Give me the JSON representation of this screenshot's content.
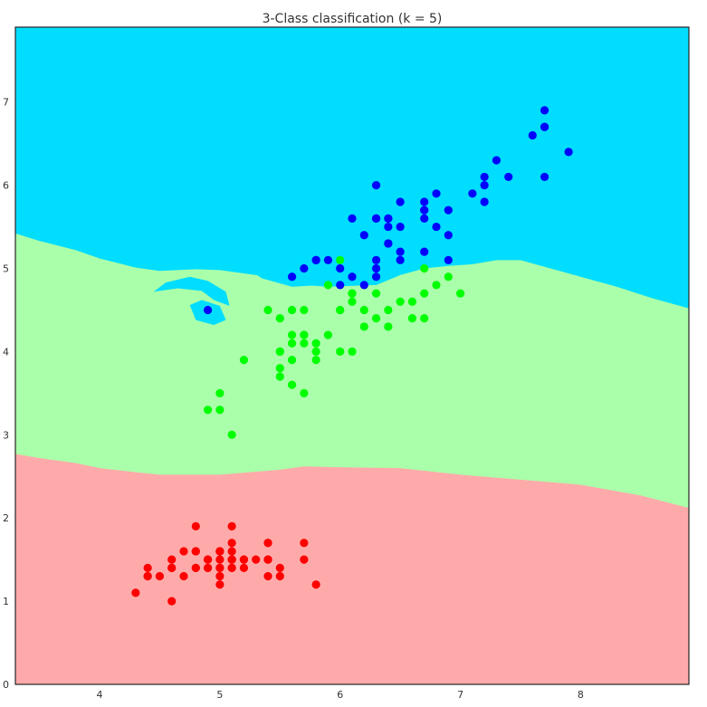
{
  "chart_data": {
    "type": "scatter",
    "title": "3-Class classification (k = 5)",
    "xlabel": "",
    "ylabel": "",
    "xlim": [
      3.3,
      8.9
    ],
    "ylim": [
      0,
      7.9
    ],
    "xticks": [
      4,
      5,
      6,
      7,
      8
    ],
    "yticks": [
      0,
      1,
      2,
      3,
      4,
      5,
      6,
      7
    ],
    "grid": false,
    "legend": "none",
    "region_colors": {
      "class0": "#FFAAAA",
      "class1": "#AAFFAA",
      "class2": "#00DDFF"
    },
    "boundaries": {
      "lower": {
        "x": [
          3.3,
          3.5,
          3.8,
          4.0,
          4.3,
          4.5,
          5.0,
          5.5,
          5.7,
          6.0,
          6.5,
          7.0,
          7.5,
          8.0,
          8.5,
          8.9
        ],
        "y": [
          2.77,
          2.72,
          2.66,
          2.6,
          2.55,
          2.52,
          2.52,
          2.58,
          2.62,
          2.61,
          2.6,
          2.52,
          2.46,
          2.4,
          2.27,
          2.12
        ]
      },
      "upper": {
        "x": [
          3.3,
          3.5,
          3.8,
          4.0,
          4.3,
          4.5,
          4.8,
          5.0,
          5.3,
          5.5,
          5.7,
          5.9,
          6.1,
          6.3,
          6.5,
          6.7,
          6.9,
          7.1,
          7.3,
          7.5,
          7.8,
          8.0,
          8.3,
          8.6,
          8.9
        ],
        "y": [
          5.42,
          5.33,
          5.22,
          5.12,
          5.01,
          4.97,
          4.99,
          4.98,
          4.92,
          4.9,
          4.8,
          4.78,
          4.79,
          4.8,
          4.92,
          5.0,
          5.03,
          5.05,
          5.1,
          5.1,
          4.98,
          4.9,
          4.78,
          4.64,
          4.52
        ]
      },
      "blue_islands": [
        {
          "x": [
            4.45,
            4.55,
            4.75,
            4.9,
            5.05,
            5.08,
            4.95,
            4.85,
            4.65,
            4.45
          ],
          "y": [
            4.72,
            4.83,
            4.9,
            4.85,
            4.72,
            4.55,
            4.62,
            4.73,
            4.76,
            4.72
          ]
        },
        {
          "x": [
            4.75,
            4.85,
            5.0,
            5.05,
            4.95,
            4.8,
            4.75
          ],
          "y": [
            4.56,
            4.62,
            4.55,
            4.38,
            4.32,
            4.38,
            4.56
          ]
        },
        {
          "x": [
            5.28,
            5.6,
            5.85,
            5.85,
            5.6,
            5.35,
            5.28
          ],
          "y": [
            4.95,
            5.08,
            5.12,
            4.8,
            4.78,
            4.88,
            4.95
          ]
        }
      ]
    },
    "series": [
      {
        "color": "#FF0000",
        "x": [
          5.1,
          4.9,
          4.7,
          4.6,
          5.0,
          5.4,
          4.6,
          5.0,
          4.4,
          4.9,
          5.4,
          4.8,
          4.8,
          4.3,
          5.8,
          5.7,
          5.4,
          5.1,
          5.7,
          5.1,
          5.4,
          5.1,
          4.6,
          5.1,
          4.8,
          5.0,
          5.0,
          5.2,
          5.2,
          4.7,
          4.8,
          5.4,
          5.2,
          5.5,
          4.9,
          5.0,
          5.5,
          4.9,
          4.4,
          5.1,
          5.0,
          4.5,
          4.4,
          5.0,
          5.1,
          4.8,
          5.1,
          4.6,
          5.3,
          5.0
        ],
        "y": [
          1.4,
          1.4,
          1.3,
          1.5,
          1.4,
          1.7,
          1.4,
          1.5,
          1.4,
          1.5,
          1.5,
          1.6,
          1.4,
          1.1,
          1.2,
          1.5,
          1.3,
          1.4,
          1.7,
          1.5,
          1.7,
          1.5,
          1.0,
          1.7,
          1.9,
          1.6,
          1.6,
          1.5,
          1.4,
          1.6,
          1.6,
          1.5,
          1.5,
          1.4,
          1.5,
          1.2,
          1.3,
          1.4,
          1.3,
          1.5,
          1.3,
          1.3,
          1.3,
          1.6,
          1.9,
          1.4,
          1.6,
          1.4,
          1.5,
          1.4
        ]
      },
      {
        "color": "#00FF00",
        "x": [
          7.0,
          6.4,
          6.9,
          5.5,
          6.5,
          5.7,
          6.3,
          4.9,
          6.6,
          5.2,
          5.0,
          5.9,
          6.0,
          6.1,
          5.6,
          6.7,
          5.6,
          5.8,
          6.2,
          5.6,
          5.9,
          6.1,
          6.3,
          6.1,
          6.4,
          6.6,
          6.8,
          6.7,
          6.0,
          5.7,
          5.5,
          5.5,
          5.8,
          6.0,
          5.4,
          6.0,
          6.7,
          6.3,
          5.6,
          5.5,
          5.5,
          6.1,
          5.8,
          5.0,
          5.6,
          5.7,
          5.7,
          6.2,
          5.1,
          5.7
        ],
        "y": [
          4.7,
          4.5,
          4.9,
          4.0,
          4.6,
          4.5,
          4.7,
          3.3,
          4.6,
          3.9,
          3.5,
          4.2,
          4.0,
          4.7,
          3.6,
          4.4,
          4.5,
          4.1,
          4.5,
          3.9,
          4.8,
          4.0,
          4.9,
          4.7,
          4.3,
          4.4,
          4.8,
          5.0,
          4.5,
          3.5,
          3.8,
          3.7,
          3.9,
          5.1,
          4.5,
          4.5,
          4.7,
          4.4,
          4.1,
          4.0,
          4.4,
          4.6,
          4.0,
          3.3,
          4.2,
          4.2,
          4.2,
          4.3,
          3.0,
          4.1
        ]
      },
      {
        "color": "#0000FF",
        "x": [
          6.3,
          5.8,
          7.1,
          6.3,
          6.5,
          7.6,
          4.9,
          7.3,
          6.7,
          7.2,
          6.5,
          6.4,
          6.8,
          5.7,
          5.8,
          6.4,
          6.5,
          7.7,
          7.7,
          6.0,
          6.9,
          5.6,
          7.7,
          6.3,
          6.7,
          7.2,
          6.2,
          6.1,
          6.4,
          7.2,
          7.4,
          7.9,
          6.4,
          6.3,
          6.1,
          7.7,
          6.3,
          6.4,
          6.0,
          6.9,
          6.7,
          6.9,
          5.8,
          6.8,
          6.7,
          6.7,
          6.3,
          6.5,
          6.2,
          5.9
        ],
        "y": [
          6.0,
          5.1,
          5.9,
          5.6,
          5.8,
          6.6,
          4.5,
          6.3,
          5.8,
          6.1,
          5.1,
          5.3,
          5.5,
          5.0,
          5.1,
          5.3,
          5.5,
          6.7,
          6.9,
          5.0,
          5.7,
          4.9,
          6.7,
          4.9,
          5.7,
          6.0,
          4.8,
          4.9,
          5.6,
          5.8,
          6.1,
          6.4,
          5.6,
          5.1,
          5.6,
          6.1,
          5.6,
          5.5,
          4.8,
          5.4,
          5.6,
          5.1,
          5.1,
          5.9,
          5.7,
          5.2,
          5.0,
          5.2,
          5.4,
          5.1
        ]
      }
    ]
  }
}
